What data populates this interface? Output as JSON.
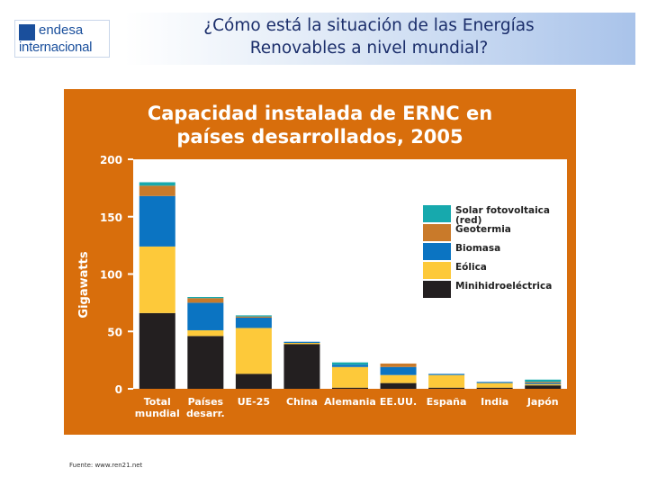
{
  "header": {
    "logo_top": "endesa",
    "logo_bottom": "internacional",
    "title_line1": "¿Cómo está la situación de las Energías",
    "title_line2": "Renovables a nivel mundial?"
  },
  "footer": {
    "source": "Fuente: www.ren21.net"
  },
  "colors": {
    "panel": "#d86e0c",
    "plot_bg": "#ffffff",
    "header_blue": "#1b2e6b"
  },
  "chart_data": {
    "type": "bar",
    "stacked": true,
    "title_line1": "Capacidad instalada de ERNC en",
    "title_line2": "países desarrollados, 2005",
    "ylabel": "Gigawatts",
    "xlabel": "",
    "ylim": [
      0,
      200
    ],
    "yticks": [
      0,
      50,
      100,
      150,
      200
    ],
    "grid": false,
    "legend_position": "right",
    "categories": [
      [
        "Total",
        "mundial"
      ],
      [
        "Países",
        "desarr."
      ],
      [
        "UE-25"
      ],
      [
        "China"
      ],
      [
        "Alemania"
      ],
      [
        "EE.UU."
      ],
      [
        "España"
      ],
      [
        "India"
      ],
      [
        "Japón"
      ]
    ],
    "series": [
      {
        "name": "Minihidroeléctrica",
        "color": "#231f20",
        "values": [
          66,
          46,
          13,
          39,
          1,
          5,
          1,
          1,
          3
        ]
      },
      {
        "name": "Eólica",
        "color": "#fdc93a",
        "values": [
          58,
          5,
          40,
          1,
          18,
          7,
          11,
          4,
          1
        ]
      },
      {
        "name": "Biomasa",
        "color": "#0b74c2",
        "values": [
          44,
          24,
          9,
          1,
          2,
          7,
          1,
          1,
          1
        ]
      },
      {
        "name": "Geotermia",
        "color": "#c97a2a",
        "values": [
          9,
          4,
          1,
          0,
          0,
          3,
          0,
          0,
          1
        ]
      },
      {
        "name": "Solar fotovoltaica\n(red)",
        "color": "#17a9ad",
        "values": [
          3,
          1,
          1,
          0,
          2,
          0,
          0,
          0,
          2
        ]
      }
    ],
    "legend_order": [
      "Solar fotovoltaica\n(red)",
      "Geotermia",
      "Biomasa",
      "Eólica",
      "Minihidroeléctrica"
    ]
  }
}
